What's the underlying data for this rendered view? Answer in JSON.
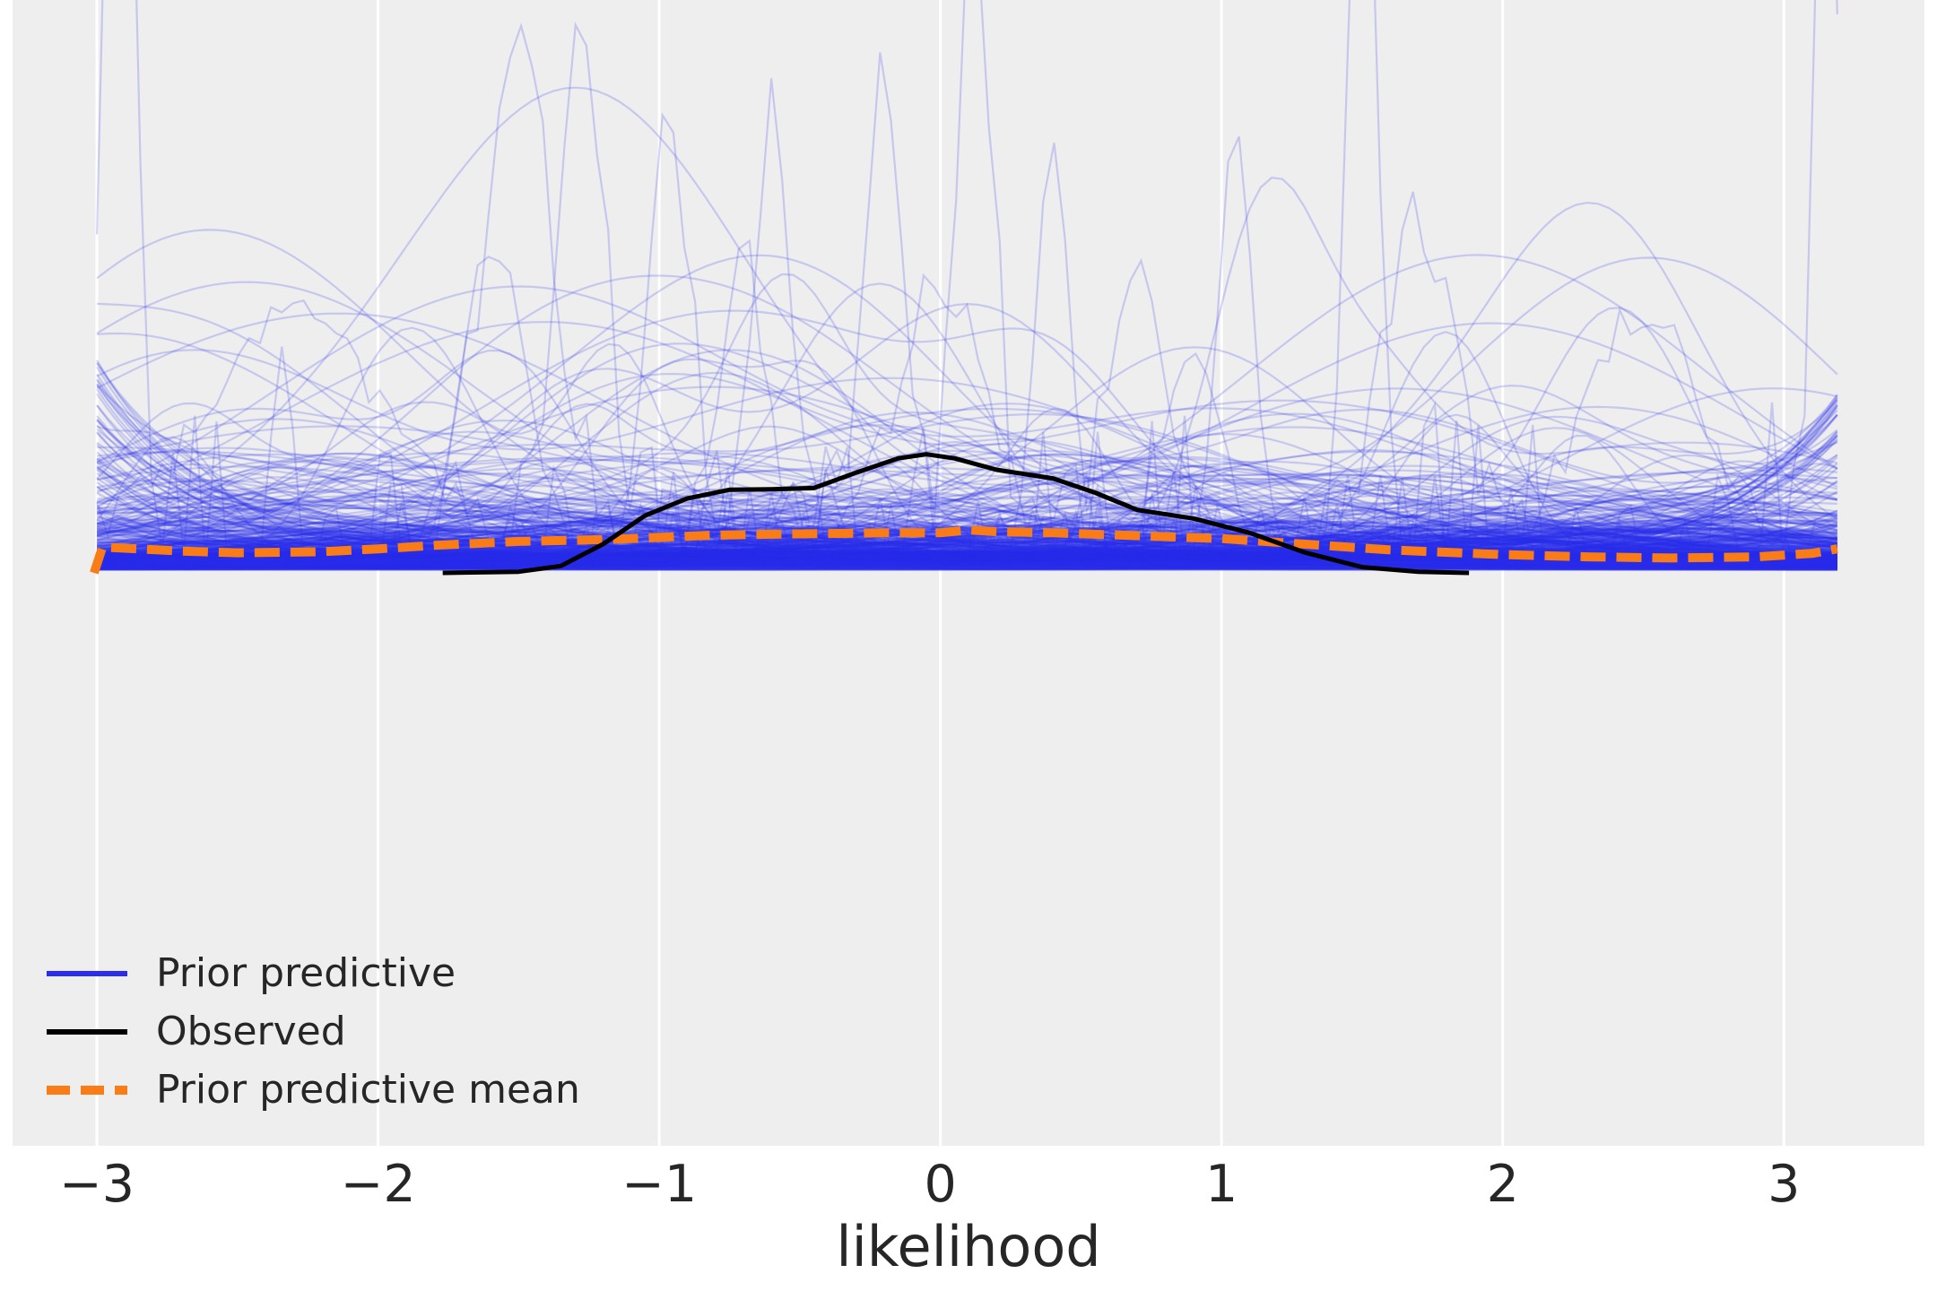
{
  "chart_data": {
    "type": "line",
    "title": "",
    "xlabel": "likelihood",
    "ylabel": "",
    "xlim": [
      -3.3,
      3.5
    ],
    "ylim": [
      -1.0,
      1.0
    ],
    "x_ticks": [
      -3,
      -2,
      -1,
      0,
      1,
      2,
      3
    ],
    "x_tick_labels": [
      "−3",
      "−2",
      "−1",
      "0",
      "1",
      "2",
      "3"
    ],
    "grid": true,
    "legend_position": "lower-left",
    "colors": {
      "background": "#EEEEEE",
      "grid": "#FFFFFF",
      "prior_predictive": "#2a2eec",
      "observed": "#000000",
      "prior_predictive_mean": "#fa7c17"
    },
    "series": [
      {
        "name": "Observed",
        "style": "solid",
        "x": [
          -1.77,
          -1.5,
          -1.35,
          -1.2,
          -1.05,
          -0.9,
          -0.75,
          -0.6,
          -0.45,
          -0.3,
          -0.15,
          -0.05,
          0.05,
          0.2,
          0.4,
          0.55,
          0.7,
          0.9,
          1.1,
          1.3,
          1.5,
          1.7,
          1.88
        ],
        "y": [
          0.0,
          0.002,
          0.012,
          0.05,
          0.1,
          0.13,
          0.145,
          0.146,
          0.148,
          0.175,
          0.2,
          0.207,
          0.2,
          0.18,
          0.165,
          0.14,
          0.11,
          0.095,
          0.07,
          0.035,
          0.01,
          0.002,
          0.0
        ]
      },
      {
        "name": "Prior predictive mean",
        "style": "dashed",
        "x": [
          -3.01,
          -2.98,
          -2.7,
          -2.5,
          -2.2,
          -2.0,
          -1.8,
          -1.5,
          -1.2,
          -1.0,
          -0.8,
          -0.5,
          -0.2,
          0.0,
          0.1,
          0.2,
          0.4,
          0.7,
          1.0,
          1.3,
          1.6,
          2.0,
          2.3,
          2.6,
          2.9,
          3.1,
          3.19
        ],
        "y": [
          0.0,
          0.045,
          0.038,
          0.035,
          0.037,
          0.042,
          0.048,
          0.055,
          0.058,
          0.062,
          0.066,
          0.068,
          0.07,
          0.07,
          0.075,
          0.072,
          0.07,
          0.065,
          0.06,
          0.05,
          0.04,
          0.032,
          0.028,
          0.026,
          0.028,
          0.034,
          0.042
        ]
      },
      {
        "name": "Prior predictive",
        "style": "solid",
        "opacity": 0.2,
        "n_draws": 500,
        "x_range": [
          -3.0,
          3.19
        ],
        "peaks": [
          [
            -2.92,
            1.9,
            0.05
          ],
          [
            -1.5,
            0.8,
            0.12
          ],
          [
            -1.28,
            0.92,
            0.08
          ],
          [
            -0.97,
            0.77,
            0.07
          ],
          [
            -0.6,
            0.7,
            0.07
          ],
          [
            -0.2,
            0.81,
            0.07
          ],
          [
            0.12,
            1.1,
            0.06
          ],
          [
            0.4,
            0.74,
            0.06
          ],
          [
            1.05,
            0.75,
            0.06
          ],
          [
            1.5,
            1.5,
            0.05
          ],
          [
            3.15,
            1.5,
            0.04
          ],
          [
            -1.6,
            0.54,
            0.1
          ],
          [
            0.0,
            0.45,
            0.15
          ],
          [
            0.7,
            0.5,
            0.1
          ],
          [
            1.7,
            0.54,
            0.12
          ],
          [
            -2.3,
            0.38,
            0.3
          ],
          [
            2.5,
            0.4,
            0.2
          ],
          [
            -0.7,
            0.48,
            0.08
          ],
          [
            0.9,
            0.37,
            0.1
          ]
        ]
      }
    ]
  },
  "legend": {
    "items": [
      {
        "label": "Prior predictive",
        "color": "#2a2eec",
        "style": "solid"
      },
      {
        "label": "Observed",
        "color": "#000000",
        "style": "solid"
      },
      {
        "label": "Prior predictive mean",
        "color": "#fa7c17",
        "style": "dashed"
      }
    ]
  }
}
